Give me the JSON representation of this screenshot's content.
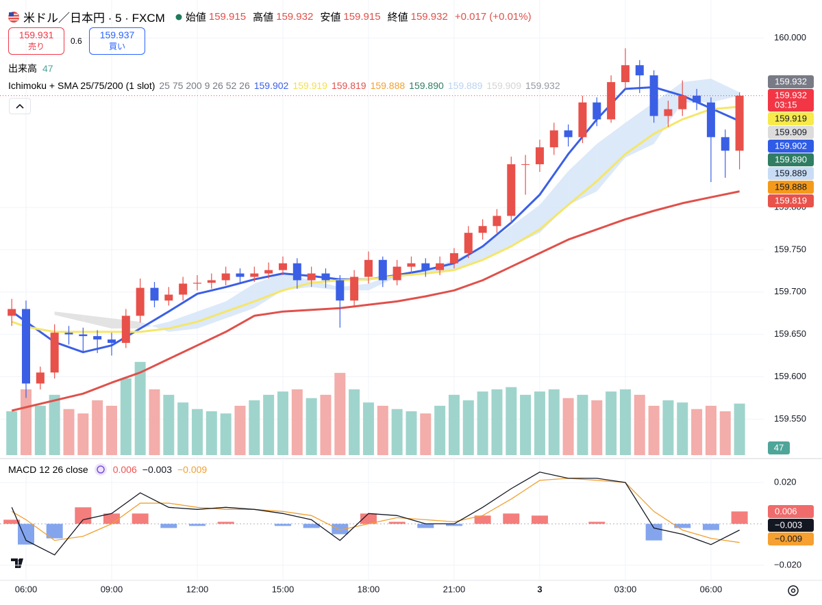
{
  "header": {
    "symbol": "米ドル／日本円 · 5 · FXCM",
    "ohlc": [
      {
        "label": "始値",
        "value": "159.915"
      },
      {
        "label": "高値",
        "value": "159.932"
      },
      {
        "label": "安値",
        "value": "159.915"
      },
      {
        "label": "終値",
        "value": "159.932"
      }
    ],
    "change": "+0.017 (+0.01%)",
    "sell": {
      "price": "159.931",
      "label": "売り"
    },
    "spread": "0.6",
    "buy": {
      "price": "159.937",
      "label": "買い"
    },
    "volume_label": "出来高",
    "indicator": {
      "name": "Ichimoku + SMA 25/75/200 (1 slot)",
      "params": "25 75 200 9 26 52 26",
      "values": [
        {
          "text": "159.902",
          "color": "#3a5fe5"
        },
        {
          "text": "159.919",
          "color": "#f2df4e"
        },
        {
          "text": "159.819",
          "color": "#e0504a"
        },
        {
          "text": "159.888",
          "color": "#f0a030"
        },
        {
          "text": "159.890",
          "color": "#2f7d62"
        },
        {
          "text": "159.889",
          "color": "#b9d3f0"
        },
        {
          "text": "159.909",
          "color": "#d4d4d4"
        },
        {
          "text": "159.932",
          "color": "#9598a1"
        }
      ]
    },
    "macd": {
      "name": "MACD 12 26 close",
      "values": [
        {
          "text": "0.006",
          "color": "#ef5350"
        },
        {
          "text": "−0.003",
          "color": "#131722"
        },
        {
          "text": "−0.009",
          "color": "#f0a030"
        }
      ]
    }
  },
  "chart_data": [
    {
      "type": "candlestick",
      "x": [
        -0.5,
        0,
        0.5,
        1,
        1.5,
        2,
        2.5,
        3,
        3.5,
        4,
        4.5,
        5,
        5.5,
        6,
        6.5,
        7,
        7.5,
        8,
        8.5,
        9,
        9.5,
        10,
        10.5,
        11,
        11.5,
        12,
        12.5,
        13,
        13.5,
        14,
        14.5,
        15,
        15.5,
        16,
        16.5,
        17,
        17.5,
        18,
        18.5,
        19,
        19.5,
        20,
        20.5,
        21,
        21.5,
        22,
        22.5,
        23,
        23.5,
        24,
        24.5,
        25
      ],
      "open": [
        159.672,
        159.68,
        159.592,
        159.605,
        159.652,
        159.65,
        159.648,
        159.644,
        159.64,
        159.672,
        159.705,
        159.69,
        159.697,
        159.71,
        159.711,
        159.714,
        159.722,
        159.718,
        159.722,
        159.726,
        159.734,
        159.714,
        159.722,
        159.714,
        159.69,
        159.718,
        159.738,
        159.714,
        159.73,
        159.734,
        159.726,
        159.734,
        159.746,
        159.77,
        159.778,
        159.79,
        159.851,
        159.851,
        159.871,
        159.891,
        159.883,
        159.924,
        159.904,
        159.948,
        159.968,
        159.956,
        159.908,
        159.916,
        159.932,
        159.924,
        159.883,
        159.867
      ],
      "high": [
        159.692,
        159.69,
        159.612,
        159.662,
        159.66,
        159.658,
        159.655,
        159.652,
        159.68,
        159.716,
        159.712,
        159.706,
        159.718,
        159.72,
        159.722,
        159.73,
        159.728,
        159.73,
        159.735,
        159.742,
        159.74,
        159.73,
        159.728,
        159.72,
        159.726,
        159.748,
        159.742,
        159.738,
        159.742,
        159.74,
        159.742,
        159.752,
        159.778,
        159.786,
        159.798,
        159.86,
        159.862,
        159.88,
        159.9,
        159.898,
        159.932,
        159.93,
        159.956,
        159.988,
        159.974,
        159.962,
        159.926,
        159.95,
        159.94,
        159.93,
        159.892,
        159.936
      ],
      "low": [
        159.66,
        159.575,
        159.585,
        159.598,
        159.638,
        159.63,
        159.628,
        159.625,
        159.634,
        159.664,
        159.682,
        159.684,
        159.69,
        159.702,
        159.704,
        159.708,
        159.71,
        159.712,
        159.716,
        159.72,
        159.704,
        159.706,
        159.705,
        159.658,
        159.684,
        159.71,
        159.706,
        159.708,
        159.722,
        159.718,
        159.72,
        159.728,
        159.74,
        159.762,
        159.77,
        159.782,
        159.815,
        159.842,
        159.862,
        159.872,
        159.876,
        159.896,
        159.9,
        159.94,
        159.935,
        159.9,
        159.895,
        159.908,
        159.915,
        159.83,
        159.835,
        159.845
      ],
      "close": [
        159.68,
        159.592,
        159.605,
        159.652,
        159.65,
        159.648,
        159.644,
        159.64,
        159.672,
        159.705,
        159.69,
        159.697,
        159.71,
        159.711,
        159.714,
        159.722,
        159.718,
        159.722,
        159.726,
        159.734,
        159.714,
        159.722,
        159.714,
        159.69,
        159.718,
        159.738,
        159.714,
        159.73,
        159.734,
        159.726,
        159.734,
        159.746,
        159.77,
        159.778,
        159.79,
        159.851,
        159.851,
        159.871,
        159.891,
        159.883,
        159.924,
        159.904,
        159.948,
        159.968,
        159.956,
        159.908,
        159.916,
        159.932,
        159.924,
        159.883,
        159.867,
        159.932
      ],
      "up_color": "#e8504a",
      "down_color": "#3a5fe5",
      "line_x": [
        -0.5,
        0,
        1,
        2,
        3,
        4,
        5,
        6,
        7,
        8,
        9,
        10,
        11,
        12,
        13,
        14,
        15,
        16,
        17,
        18,
        19,
        20,
        21,
        22,
        23,
        24,
        25
      ],
      "overlays": [
        {
          "color": "#3a5fe5",
          "values": [
            159.677,
            159.665,
            159.641,
            159.629,
            159.637,
            159.657,
            159.677,
            159.698,
            159.706,
            159.715,
            159.722,
            159.719,
            159.715,
            159.715,
            159.72,
            159.726,
            159.734,
            159.754,
            159.782,
            159.815,
            159.863,
            159.904,
            159.94,
            159.942,
            159.932,
            159.917,
            159.902
          ]
        },
        {
          "color": "#f5e66a",
          "values": [
            159.665,
            159.659,
            159.653,
            159.653,
            159.653,
            159.653,
            159.657,
            159.665,
            159.677,
            159.689,
            159.702,
            159.711,
            159.714,
            159.715,
            159.719,
            159.722,
            159.726,
            159.738,
            159.754,
            159.774,
            159.803,
            159.831,
            159.863,
            159.887,
            159.904,
            159.916,
            159.919
          ]
        },
        {
          "color": "#e0504a",
          "values": [
            159.56,
            159.564,
            159.572,
            159.58,
            159.593,
            159.605,
            159.621,
            159.637,
            159.653,
            159.672,
            159.677,
            159.679,
            159.681,
            159.685,
            159.689,
            159.695,
            159.702,
            159.714,
            159.73,
            159.746,
            159.762,
            159.774,
            159.786,
            159.796,
            159.805,
            159.812,
            159.819
          ]
        }
      ],
      "cloud": {
        "x": [
          1,
          2,
          3,
          4,
          5,
          6,
          7,
          8,
          9,
          10,
          11,
          12,
          13,
          14,
          15,
          16,
          17,
          18,
          19,
          20,
          21,
          22,
          23,
          24,
          25
        ],
        "span_a": [
          159.673,
          159.665,
          159.657,
          159.657,
          159.665,
          159.677,
          159.689,
          159.71,
          159.722,
          159.714,
          159.706,
          159.71,
          159.722,
          159.726,
          159.738,
          159.754,
          159.778,
          159.803,
          159.843,
          159.875,
          159.9,
          159.924,
          159.948,
          159.952,
          159.936
        ],
        "span_b": [
          159.677,
          159.673,
          159.669,
          159.665,
          159.653,
          159.657,
          159.669,
          159.681,
          159.702,
          159.706,
          159.702,
          159.702,
          159.718,
          159.722,
          159.726,
          159.738,
          159.754,
          159.77,
          159.803,
          159.819,
          159.859,
          159.875,
          159.924,
          159.924,
          159.932
        ],
        "up_color": "#d3e4f8",
        "down_color": "#dcdcdc"
      },
      "volume": {
        "values": [
          40,
          60,
          45,
          55,
          42,
          38,
          50,
          45,
          70,
          85,
          60,
          55,
          48,
          42,
          40,
          38,
          45,
          50,
          55,
          58,
          60,
          52,
          55,
          75,
          60,
          48,
          45,
          42,
          40,
          38,
          45,
          55,
          50,
          58,
          60,
          62,
          55,
          58,
          60,
          52,
          55,
          50,
          58,
          60,
          55,
          45,
          50,
          48,
          42,
          45,
          40,
          47
        ],
        "ylim": [
          0,
          415
        ],
        "up_color": "#9fd4cc",
        "down_color": "#f3adaa",
        "label_color": "#4fa59a"
      },
      "xlim": [
        -0.912,
        25.85
      ],
      "ylim": [
        159.505,
        160.045
      ],
      "xticks": [
        {
          "value": 0,
          "label": "06:00"
        },
        {
          "value": 3,
          "label": "09:00"
        },
        {
          "value": 6,
          "label": "12:00"
        },
        {
          "value": 9,
          "label": "15:00"
        },
        {
          "value": 12,
          "label": "18:00"
        },
        {
          "value": 15,
          "label": "21:00"
        },
        {
          "value": 18,
          "label": "3"
        },
        {
          "value": 21,
          "label": "03:00"
        },
        {
          "value": 24,
          "label": "06:00"
        }
      ],
      "yticks": [
        {
          "value": 160,
          "label": "160.000"
        },
        {
          "value": 159.8,
          "label": "159.800"
        },
        {
          "value": 159.75,
          "label": "159.750"
        },
        {
          "value": 159.7,
          "label": "159.700"
        },
        {
          "value": 159.65,
          "label": "159.650"
        },
        {
          "value": 159.6,
          "label": "159.600"
        },
        {
          "value": 159.55,
          "label": "159.550"
        }
      ],
      "grid": true,
      "price_labels": [
        {
          "label": "159.932",
          "color": "#787b86",
          "text_color": "#ffffff"
        },
        {
          "label": "159.932",
          "sub": "03:15",
          "color": "#f23645",
          "text_color": "#ffffff"
        },
        {
          "label": "159.919",
          "color": "#f7ea4a",
          "text_color": "#131722"
        },
        {
          "label": "159.909",
          "color": "#dcdcdc",
          "text_color": "#131722"
        },
        {
          "label": "159.902",
          "color": "#2f5ce6",
          "text_color": "#ffffff"
        },
        {
          "label": "159.890",
          "color": "#2f7d62",
          "text_color": "#ffffff"
        },
        {
          "label": "159.889",
          "color": "#c8ddf5",
          "text_color": "#131722"
        },
        {
          "label": "159.888",
          "color": "#f49a1a",
          "text_color": "#131722"
        },
        {
          "label": "159.819",
          "color": "#e8524a",
          "text_color": "#ffffff"
        }
      ]
    },
    {
      "type": "macd",
      "x": [
        -0.5,
        0,
        1,
        2,
        3,
        4,
        5,
        6,
        7,
        8,
        9,
        10,
        11,
        12,
        13,
        14,
        15,
        16,
        17,
        18,
        19,
        20,
        21,
        22,
        23,
        24,
        25
      ],
      "macd": [
        0.008,
        -0.008,
        -0.015,
        0.002,
        0.005,
        0.015,
        0.008,
        0.007,
        0.008,
        0.007,
        0.005,
        0.002,
        -0.008,
        0.005,
        0.004,
        0,
        0,
        0.008,
        0.017,
        0.025,
        0.022,
        0.022,
        0.02,
        -0.002,
        -0.005,
        -0.01,
        -0.003
      ],
      "signal": [
        0.006,
        0.002,
        -0.008,
        -0.006,
        0,
        0.01,
        0.01,
        0.008,
        0.007,
        0.007,
        0.006,
        0.004,
        -0.003,
        0,
        0.003,
        0.002,
        0.001,
        0.004,
        0.012,
        0.021,
        0.022,
        0.021,
        0.02,
        0.006,
        -0.003,
        -0.007,
        -0.009
      ],
      "histogram": [
        0.002,
        -0.01,
        -0.007,
        0.008,
        0.005,
        0.005,
        -0.002,
        -0.001,
        0.001,
        0,
        -0.001,
        -0.002,
        -0.005,
        0.005,
        0.001,
        -0.002,
        -0.001,
        0.004,
        0.005,
        0.004,
        0,
        0.001,
        0,
        -0.008,
        -0.002,
        -0.003,
        0.006
      ],
      "macd_color": "#131722",
      "signal_color": "#f0a030",
      "hist_up_color": "#ef5350",
      "hist_down_color": "#5b87e8",
      "xlim": [
        -0.912,
        25.85
      ],
      "ylim": [
        -0.0273,
        0.0309
      ],
      "yticks": [
        {
          "value": 0.02,
          "label": "0.020"
        },
        {
          "value": -0.02,
          "label": "−0.020"
        }
      ],
      "price_labels": [
        {
          "label": "0.006",
          "color": "#f06b6b",
          "text_color": "#ffffff"
        },
        {
          "label": "−0.003",
          "color": "#131722",
          "text_color": "#ffffff"
        },
        {
          "label": "−0.009",
          "color": "#f5a030",
          "text_color": "#131722"
        }
      ]
    }
  ]
}
